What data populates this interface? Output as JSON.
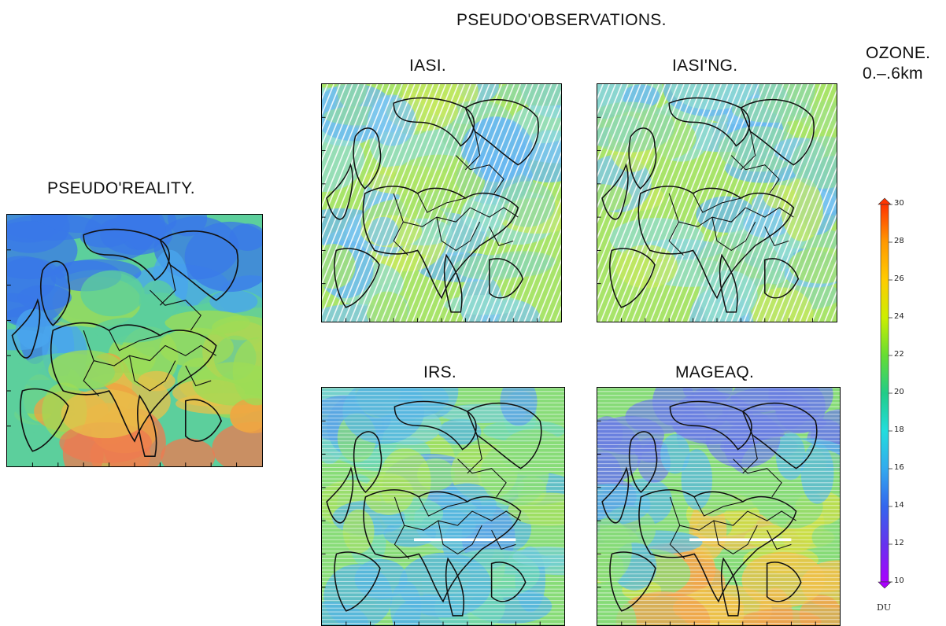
{
  "titles": {
    "group": "PSEUDO'OBSERVATIONS.",
    "reality": "PSEUDO'REALITY.",
    "iasi": "IASI.",
    "iasi_ng": "IASI'NG.",
    "irs": "IRS.",
    "mageaq": "MAGEAQ."
  },
  "colorbar": {
    "title_line1": "OZONE.",
    "title_line2": "0.–.6km",
    "ticks": [
      "30",
      "28",
      "26",
      "24",
      "22",
      "20",
      "18",
      "16",
      "14",
      "12",
      "10"
    ],
    "unit": "DU",
    "colors": [
      "#ff3300",
      "#ff9900",
      "#ffcc00",
      "#ccee00",
      "#66dd33",
      "#22cc88",
      "#22dddd",
      "#33aaee",
      "#3366ee",
      "#6633ee",
      "#aa00ff"
    ]
  },
  "palette": {
    "reality": [
      "#3a78e8",
      "#49a6ee",
      "#5ccf9c",
      "#9ddc55",
      "#e8c04a",
      "#f0a040",
      "#ee7a50"
    ],
    "iasi": [
      "#7cc6f0",
      "#92dcd0",
      "#a8e46a",
      "#c6e860",
      "#8fd8a8",
      "#6ab8f2"
    ],
    "irs": [
      "#56b6e0",
      "#6cd6b4",
      "#88dc78",
      "#a6e05c",
      "#5aa0e6",
      "#73cfd0"
    ],
    "mageaq": [
      "#6a7fe0",
      "#58b8e0",
      "#86db77",
      "#c9df45",
      "#eec04a",
      "#f0a04c"
    ]
  }
}
